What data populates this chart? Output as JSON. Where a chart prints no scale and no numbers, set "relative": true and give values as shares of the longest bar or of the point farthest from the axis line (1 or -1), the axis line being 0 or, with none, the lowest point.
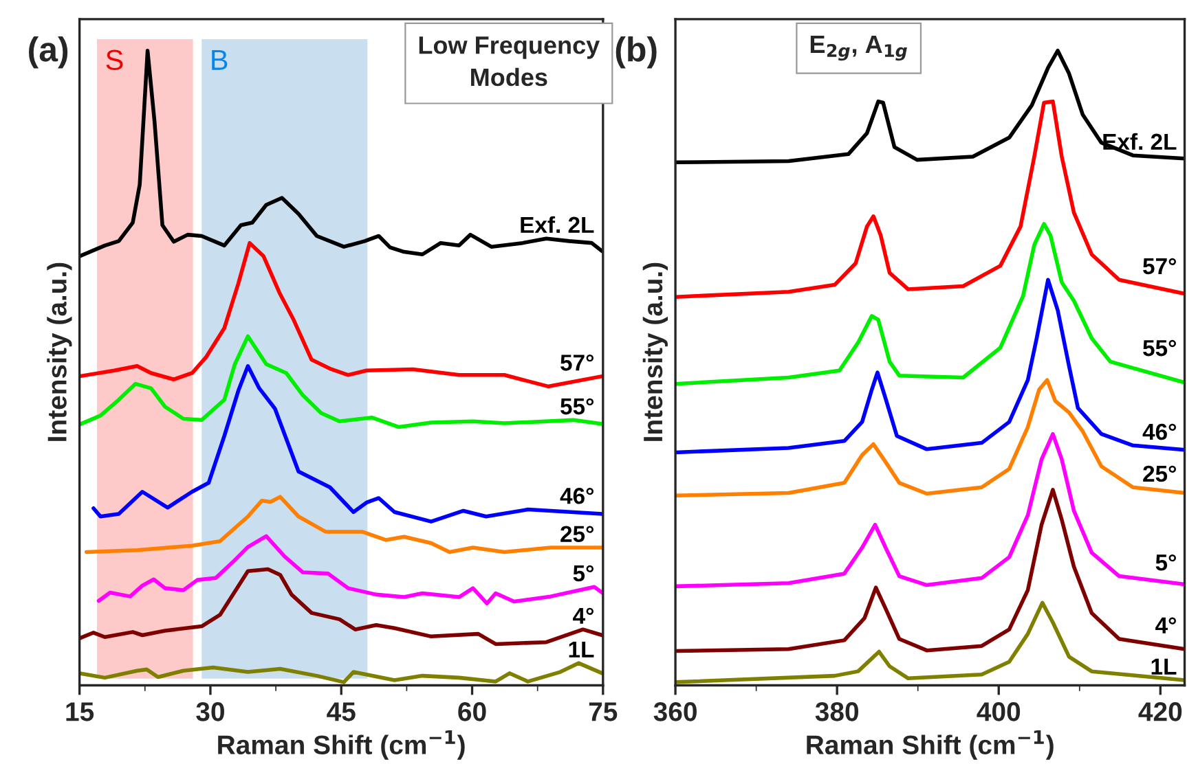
{
  "chart_data": [
    {
      "type": "line",
      "title": "Low Frequency Modes",
      "xlabel": "Raman Shift (cm$^{−1}$)",
      "ylabel": "Intensity (a.u.)",
      "relative": true,
      "xlim": [
        15,
        75
      ],
      "xticks": [
        15,
        30,
        45,
        60,
        75
      ],
      "grid": false,
      "legend": false,
      "marker": "none",
      "line_style": "solid",
      "annotations": [
        "(a)"
      ],
      "bands": [
        {
          "axis": "x",
          "from": 17,
          "to": 28,
          "label": "S",
          "color": "#fdc9c9"
        },
        {
          "axis": "x",
          "from": 29,
          "to": 48,
          "label": "B",
          "color": "#c9dff0"
        }
      ],
      "series": [
        {
          "name": "Exf. 2L",
          "color": "#000000",
          "x": [
            15,
            17.9,
            19.5,
            21.1,
            21.9,
            22.8,
            23.6,
            24.5,
            25.8,
            27.4,
            29.0,
            31.6,
            33.5,
            34.8,
            36.4,
            38.2,
            40.1,
            42.2,
            45.3,
            47.7,
            49.3,
            50.6,
            52.2,
            54.3,
            56.4,
            58.5,
            59.8,
            62.2,
            65.8,
            68.5,
            71.1,
            73.7,
            74.9
          ],
          "values": [
            0.676,
            0.693,
            0.7,
            0.729,
            0.789,
            1.0,
            0.888,
            0.725,
            0.699,
            0.71,
            0.708,
            0.693,
            0.725,
            0.729,
            0.757,
            0.768,
            0.743,
            0.708,
            0.691,
            0.7,
            0.708,
            0.69,
            0.683,
            0.679,
            0.697,
            0.693,
            0.71,
            0.691,
            0.697,
            0.704,
            0.7,
            0.697,
            0.684
          ]
        },
        {
          "name": "57°",
          "color": "#ff0000",
          "x": [
            15,
            19,
            21.6,
            23.2,
            25.8,
            27.9,
            29.5,
            31.6,
            33.2,
            34.5,
            36.1,
            37.9,
            39.5,
            41.6,
            43.7,
            45.8,
            47.9,
            53.2,
            58.5,
            63.7,
            68.7,
            74.9
          ],
          "values": [
            0.487,
            0.496,
            0.503,
            0.492,
            0.482,
            0.492,
            0.517,
            0.563,
            0.633,
            0.697,
            0.676,
            0.619,
            0.577,
            0.513,
            0.499,
            0.489,
            0.496,
            0.498,
            0.489,
            0.489,
            0.471,
            0.487
          ]
        },
        {
          "name": "55°",
          "color": "#00ee00",
          "x": [
            15,
            17.4,
            19.5,
            21.4,
            23.2,
            24.8,
            26.9,
            29.0,
            31.6,
            32.8,
            34.3,
            36.4,
            38.7,
            40.6,
            42.7,
            44.8,
            48.5,
            51.6,
            55.3,
            60.1,
            63.7,
            71.6,
            74.9
          ],
          "values": [
            0.411,
            0.425,
            0.45,
            0.475,
            0.468,
            0.439,
            0.42,
            0.418,
            0.45,
            0.506,
            0.55,
            0.506,
            0.492,
            0.457,
            0.429,
            0.416,
            0.422,
            0.407,
            0.414,
            0.416,
            0.413,
            0.418,
            0.412
          ]
        },
        {
          "name": "46°",
          "color": "#0000ff",
          "x": [
            16.6,
            17.4,
            19.5,
            22.2,
            25.1,
            27.9,
            29.8,
            31.6,
            33.2,
            34.3,
            35.6,
            37.4,
            40.1,
            43.7,
            46.4,
            47.9,
            49.3,
            51.1,
            55.3,
            59.0,
            61.6,
            66.4,
            74.9
          ],
          "values": [
            0.279,
            0.266,
            0.27,
            0.305,
            0.28,
            0.305,
            0.319,
            0.393,
            0.464,
            0.503,
            0.468,
            0.436,
            0.337,
            0.312,
            0.273,
            0.288,
            0.295,
            0.273,
            0.258,
            0.275,
            0.266,
            0.277,
            0.27
          ]
        },
        {
          "name": "25°",
          "color": "#ff7f00",
          "x": [
            15.8,
            21.6,
            27.9,
            31.1,
            34.3,
            35.9,
            36.9,
            38.0,
            40.1,
            43.2,
            47.4,
            50.1,
            52.2,
            55.3,
            57.4,
            60.1,
            63.7,
            69.0,
            74.9
          ],
          "values": [
            0.21,
            0.213,
            0.22,
            0.227,
            0.266,
            0.291,
            0.289,
            0.297,
            0.266,
            0.242,
            0.242,
            0.229,
            0.234,
            0.224,
            0.21,
            0.217,
            0.21,
            0.217,
            0.217
          ]
        },
        {
          "name": "5°",
          "color": "#ff00ff",
          "x": [
            17.2,
            18.5,
            20.8,
            22.2,
            23.5,
            24.8,
            26.9,
            28.5,
            30.6,
            32.7,
            34.3,
            36.4,
            38.5,
            40.6,
            43.5,
            45.8,
            49.0,
            52.2,
            54.3,
            58.5,
            60.1,
            61.7,
            62.7,
            64.8,
            69.0,
            74.0,
            74.9
          ],
          "values": [
            0.133,
            0.146,
            0.14,
            0.157,
            0.167,
            0.153,
            0.15,
            0.166,
            0.169,
            0.196,
            0.218,
            0.235,
            0.203,
            0.178,
            0.176,
            0.153,
            0.143,
            0.139,
            0.145,
            0.139,
            0.153,
            0.129,
            0.145,
            0.132,
            0.14,
            0.155,
            0.146
          ]
        },
        {
          "name": "4°",
          "color": "#7f0000",
          "x": [
            15,
            16.6,
            17.9,
            21.1,
            22.2,
            24.8,
            29.0,
            31.1,
            34.3,
            36.6,
            38.0,
            39.3,
            41.6,
            44.8,
            46.6,
            49.0,
            51.1,
            55.3,
            60.7,
            62.7,
            68.5,
            72.7,
            74.9
          ],
          "values": [
            0.074,
            0.083,
            0.076,
            0.084,
            0.079,
            0.086,
            0.093,
            0.111,
            0.18,
            0.183,
            0.174,
            0.143,
            0.114,
            0.104,
            0.088,
            0.095,
            0.09,
            0.077,
            0.081,
            0.065,
            0.068,
            0.088,
            0.079
          ]
        },
        {
          "name": "1L",
          "color": "#808000",
          "x": [
            15,
            17.9,
            21.6,
            22.7,
            24.0,
            26.9,
            30.3,
            34.3,
            38.0,
            42.2,
            45.3,
            46.4,
            51.1,
            54.3,
            58.5,
            62.7,
            64.3,
            66.4,
            70.1,
            72.2,
            74.9
          ],
          "values": [
            0.019,
            0.012,
            0.023,
            0.025,
            0.013,
            0.023,
            0.028,
            0.021,
            0.026,
            0.015,
            0.005,
            0.021,
            0.008,
            0.015,
            0.012,
            0.006,
            0.019,
            0.006,
            0.021,
            0.035,
            0.019
          ]
        }
      ]
    },
    {
      "type": "line",
      "title": "E$_{2g}$, A$_{1g}$",
      "xlabel": "Raman Shift (cm$^{−1}$)",
      "ylabel": "Intensity (a.u.)",
      "relative": true,
      "xlim": [
        360,
        423
      ],
      "xticks": [
        360,
        380,
        400,
        420
      ],
      "grid": false,
      "legend": false,
      "marker": "none",
      "line_style": "solid",
      "annotations": [
        "(b)"
      ],
      "series": [
        {
          "name": "Exf. 2L",
          "color": "#000000",
          "x": [
            360,
            374.0,
            381.4,
            383.7,
            385.1,
            385.7,
            387.1,
            389.9,
            396.8,
            401.3,
            404.1,
            406.1,
            407.3,
            408.7,
            410.4,
            412.7,
            416.6,
            423
          ],
          "values": [
            0.824,
            0.826,
            0.837,
            0.87,
            0.92,
            0.918,
            0.848,
            0.828,
            0.833,
            0.863,
            0.914,
            0.973,
            1.0,
            0.964,
            0.899,
            0.855,
            0.835,
            0.83
          ]
        },
        {
          "name": "57°",
          "color": "#ff0000",
          "x": [
            360,
            374.0,
            379.7,
            382.3,
            383.7,
            384.5,
            385.4,
            386.5,
            388.8,
            395.6,
            400.2,
            402.7,
            404.4,
            405.6,
            406.7,
            407.8,
            409.3,
            411.5,
            414.9,
            423
          ],
          "values": [
            0.612,
            0.62,
            0.631,
            0.665,
            0.723,
            0.739,
            0.709,
            0.65,
            0.624,
            0.629,
            0.661,
            0.723,
            0.833,
            0.918,
            0.92,
            0.833,
            0.745,
            0.679,
            0.639,
            0.617
          ]
        },
        {
          "name": "55°",
          "color": "#00ee00",
          "x": [
            360,
            374,
            380.3,
            382.6,
            384.3,
            385.1,
            386.5,
            387.7,
            395.6,
            400.2,
            403.0,
            404.4,
            405.6,
            406.4,
            407.8,
            409.3,
            411.5,
            413.8,
            423
          ],
          "values": [
            0.475,
            0.485,
            0.496,
            0.54,
            0.582,
            0.576,
            0.51,
            0.488,
            0.485,
            0.532,
            0.613,
            0.694,
            0.727,
            0.709,
            0.635,
            0.606,
            0.547,
            0.51,
            0.477
          ]
        },
        {
          "name": "46°",
          "color": "#0000ff",
          "x": [
            360,
            374,
            380.9,
            383.1,
            384.3,
            385.0,
            386.0,
            387.4,
            391.1,
            397.9,
            401.3,
            403.6,
            404.7,
            406.1,
            407.3,
            408.7,
            409.8,
            412.7,
            416.6,
            423
          ],
          "values": [
            0.367,
            0.374,
            0.385,
            0.415,
            0.466,
            0.493,
            0.452,
            0.393,
            0.372,
            0.382,
            0.415,
            0.481,
            0.547,
            0.639,
            0.591,
            0.503,
            0.437,
            0.396,
            0.378,
            0.371
          ]
        },
        {
          "name": "25°",
          "color": "#ff7f00",
          "x": [
            360,
            374,
            380.9,
            383.1,
            384.5,
            386.0,
            387.7,
            391.1,
            397.9,
            401.3,
            403.6,
            405.0,
            406.0,
            407.0,
            408.7,
            410.4,
            412.7,
            416.6,
            423
          ],
          "values": [
            0.299,
            0.303,
            0.319,
            0.363,
            0.38,
            0.352,
            0.319,
            0.302,
            0.312,
            0.341,
            0.407,
            0.466,
            0.481,
            0.448,
            0.43,
            0.4,
            0.345,
            0.312,
            0.303
          ]
        },
        {
          "name": "5°",
          "color": "#ff00ff",
          "x": [
            360,
            374,
            380.9,
            383.1,
            384.7,
            386.0,
            387.7,
            391.1,
            397.9,
            401.3,
            403.6,
            405.3,
            406.7,
            407.8,
            409.3,
            411.5,
            414.9,
            423
          ],
          "values": [
            0.156,
            0.161,
            0.176,
            0.217,
            0.253,
            0.217,
            0.172,
            0.158,
            0.169,
            0.202,
            0.268,
            0.356,
            0.396,
            0.356,
            0.275,
            0.209,
            0.172,
            0.159
          ]
        },
        {
          "name": "4°",
          "color": "#7f0000",
          "x": [
            360,
            374,
            380.9,
            383.4,
            384.8,
            386.0,
            387.7,
            391.1,
            397.9,
            401.3,
            403.6,
            405.3,
            406.7,
            407.8,
            409.3,
            411.5,
            414.9,
            423
          ],
          "values": [
            0.054,
            0.057,
            0.071,
            0.106,
            0.154,
            0.121,
            0.073,
            0.055,
            0.062,
            0.088,
            0.15,
            0.253,
            0.308,
            0.261,
            0.187,
            0.114,
            0.073,
            0.057
          ]
        },
        {
          "name": "1L",
          "color": "#808000",
          "x": [
            360,
            379.7,
            382.6,
            385.2,
            386.5,
            388.8,
            397.9,
            401.3,
            403.6,
            405.4,
            406.7,
            408.7,
            411.5,
            423
          ],
          "values": [
            0.005,
            0.015,
            0.022,
            0.053,
            0.03,
            0.011,
            0.017,
            0.037,
            0.081,
            0.13,
            0.099,
            0.045,
            0.022,
            0.008
          ]
        }
      ]
    }
  ]
}
